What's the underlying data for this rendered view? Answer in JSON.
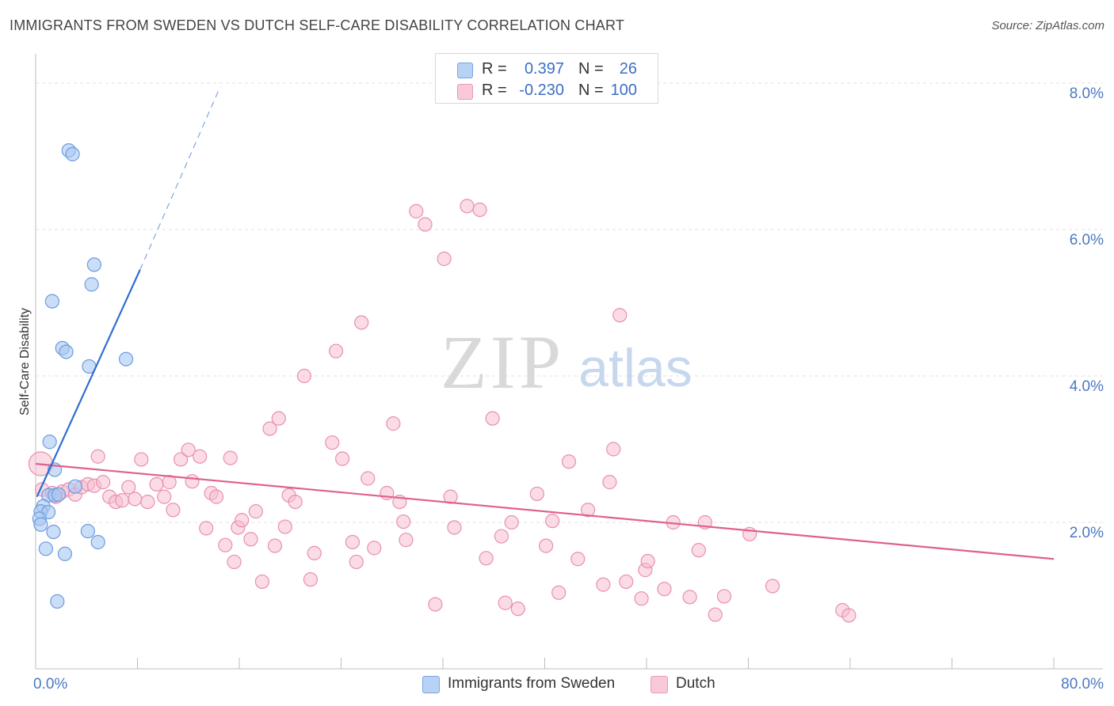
{
  "title": "IMMIGRANTS FROM SWEDEN VS DUTCH SELF-CARE DISABILITY CORRELATION CHART",
  "source": "Source: ZipAtlas.com",
  "watermark": {
    "zip": "ZIP",
    "atlas": "atlas"
  },
  "colors": {
    "sweden_fill": "#a9c8f2",
    "sweden_stroke": "#6d9be0",
    "sweden_line": "#2f6fd0",
    "dutch_fill": "#f7bdd0",
    "dutch_stroke": "#e890ae",
    "dutch_line": "#e0608e",
    "tick_text": "#4a78c2",
    "grid": "#e2e2e2"
  },
  "legend": {
    "rows": [
      {
        "r_label": "R =",
        "r_value": "0.397",
        "n_label": "N =",
        "n_value": "26"
      },
      {
        "r_label": "R =",
        "r_value": "-0.230",
        "n_label": "N =",
        "n_value": "100"
      }
    ]
  },
  "chart_data": {
    "type": "scatter",
    "title": "IMMIGRANTS FROM SWEDEN VS DUTCH SELF-CARE DISABILITY CORRELATION CHART",
    "ylabel": "Self-Care Disability",
    "xlabel": "",
    "xlim": [
      0,
      80
    ],
    "ylim": [
      0,
      8.4
    ],
    "x_tick_labels": [
      "0.0%",
      "80.0%"
    ],
    "y_ticks": [
      2,
      4,
      6,
      8
    ],
    "y_tick_labels": [
      "2.0%",
      "4.0%",
      "6.0%",
      "8.0%"
    ],
    "grid": true,
    "legend_position": "top-center",
    "series": [
      {
        "name": "Immigrants from Sweden",
        "r": 0.397,
        "n": 26,
        "trend": {
          "x0": 0.1,
          "y0": 2.35,
          "x1": 8.2,
          "y1": 5.45,
          "dash_to_x": 14.5,
          "dash_to_y": 7.95
        },
        "points": [
          [
            2.6,
            7.08
          ],
          [
            2.9,
            7.03
          ],
          [
            4.6,
            5.52
          ],
          [
            4.4,
            5.25
          ],
          [
            1.3,
            5.02
          ],
          [
            2.1,
            4.38
          ],
          [
            2.4,
            4.33
          ],
          [
            4.2,
            4.13
          ],
          [
            7.1,
            4.23
          ],
          [
            1.1,
            3.1
          ],
          [
            1.5,
            2.72
          ],
          [
            3.1,
            2.49
          ],
          [
            1.0,
            2.37
          ],
          [
            1.5,
            2.37
          ],
          [
            1.8,
            2.38
          ],
          [
            0.6,
            2.22
          ],
          [
            0.4,
            2.15
          ],
          [
            1.0,
            2.14
          ],
          [
            0.3,
            2.05
          ],
          [
            0.4,
            1.97
          ],
          [
            1.4,
            1.87
          ],
          [
            4.1,
            1.88
          ],
          [
            4.9,
            1.73
          ],
          [
            0.8,
            1.64
          ],
          [
            2.3,
            1.57
          ],
          [
            1.7,
            0.92
          ]
        ]
      },
      {
        "name": "Dutch",
        "r": -0.23,
        "n": 100,
        "trend": {
          "x0": 0,
          "y0": 2.8,
          "x1": 80,
          "y1": 1.5
        },
        "points": [
          [
            0.4,
            2.8
          ],
          [
            0.5,
            2.45
          ],
          [
            1.3,
            2.4
          ],
          [
            1.6,
            2.35
          ],
          [
            2.1,
            2.42
          ],
          [
            2.6,
            2.45
          ],
          [
            3.1,
            2.38
          ],
          [
            3.6,
            2.48
          ],
          [
            4.1,
            2.52
          ],
          [
            4.6,
            2.5
          ],
          [
            4.9,
            2.9
          ],
          [
            5.3,
            2.55
          ],
          [
            5.8,
            2.35
          ],
          [
            6.3,
            2.28
          ],
          [
            6.8,
            2.3
          ],
          [
            7.3,
            2.48
          ],
          [
            7.8,
            2.32
          ],
          [
            8.3,
            2.86
          ],
          [
            8.8,
            2.28
          ],
          [
            9.5,
            2.52
          ],
          [
            10.1,
            2.35
          ],
          [
            10.5,
            2.55
          ],
          [
            10.8,
            2.17
          ],
          [
            11.4,
            2.86
          ],
          [
            12.0,
            2.99
          ],
          [
            12.3,
            2.56
          ],
          [
            12.9,
            2.9
          ],
          [
            13.4,
            1.92
          ],
          [
            13.8,
            2.4
          ],
          [
            14.2,
            2.35
          ],
          [
            14.9,
            1.69
          ],
          [
            15.3,
            2.88
          ],
          [
            15.6,
            1.46
          ],
          [
            15.9,
            1.93
          ],
          [
            16.2,
            2.03
          ],
          [
            16.9,
            1.77
          ],
          [
            17.3,
            2.15
          ],
          [
            17.8,
            1.19
          ],
          [
            18.4,
            3.28
          ],
          [
            18.8,
            1.68
          ],
          [
            19.1,
            3.42
          ],
          [
            19.6,
            1.94
          ],
          [
            19.9,
            2.37
          ],
          [
            20.4,
            2.28
          ],
          [
            21.1,
            4.0
          ],
          [
            21.6,
            1.22
          ],
          [
            21.9,
            1.58
          ],
          [
            23.3,
            3.09
          ],
          [
            23.6,
            4.34
          ],
          [
            24.1,
            2.87
          ],
          [
            24.9,
            1.73
          ],
          [
            25.2,
            1.46
          ],
          [
            25.6,
            4.73
          ],
          [
            26.1,
            2.6
          ],
          [
            26.6,
            1.65
          ],
          [
            27.6,
            2.4
          ],
          [
            28.1,
            3.35
          ],
          [
            28.6,
            2.28
          ],
          [
            28.9,
            2.01
          ],
          [
            29.1,
            1.76
          ],
          [
            29.9,
            6.25
          ],
          [
            30.6,
            6.07
          ],
          [
            31.4,
            0.88
          ],
          [
            32.1,
            5.6
          ],
          [
            32.6,
            2.35
          ],
          [
            32.9,
            1.93
          ],
          [
            33.9,
            6.32
          ],
          [
            34.9,
            6.27
          ],
          [
            35.4,
            1.51
          ],
          [
            35.9,
            3.42
          ],
          [
            36.6,
            1.81
          ],
          [
            36.9,
            0.9
          ],
          [
            37.4,
            2.0
          ],
          [
            37.9,
            0.82
          ],
          [
            39.4,
            2.39
          ],
          [
            40.1,
            1.68
          ],
          [
            40.6,
            2.02
          ],
          [
            41.1,
            1.04
          ],
          [
            41.9,
            2.83
          ],
          [
            42.6,
            1.5
          ],
          [
            43.4,
            2.17
          ],
          [
            44.6,
            1.15
          ],
          [
            45.1,
            2.55
          ],
          [
            45.4,
            3.0
          ],
          [
            45.9,
            4.83
          ],
          [
            46.4,
            1.19
          ],
          [
            47.6,
            0.96
          ],
          [
            47.9,
            1.35
          ],
          [
            48.1,
            1.47
          ],
          [
            49.4,
            1.09
          ],
          [
            50.1,
            2.0
          ],
          [
            51.4,
            0.98
          ],
          [
            52.1,
            1.62
          ],
          [
            52.6,
            2.0
          ],
          [
            53.4,
            0.74
          ],
          [
            54.1,
            0.99
          ],
          [
            56.1,
            1.84
          ],
          [
            57.9,
            1.13
          ],
          [
            63.4,
            0.8
          ],
          [
            63.9,
            0.73
          ]
        ]
      }
    ]
  },
  "bottom_legend": [
    "Immigrants from Sweden",
    "Dutch"
  ]
}
